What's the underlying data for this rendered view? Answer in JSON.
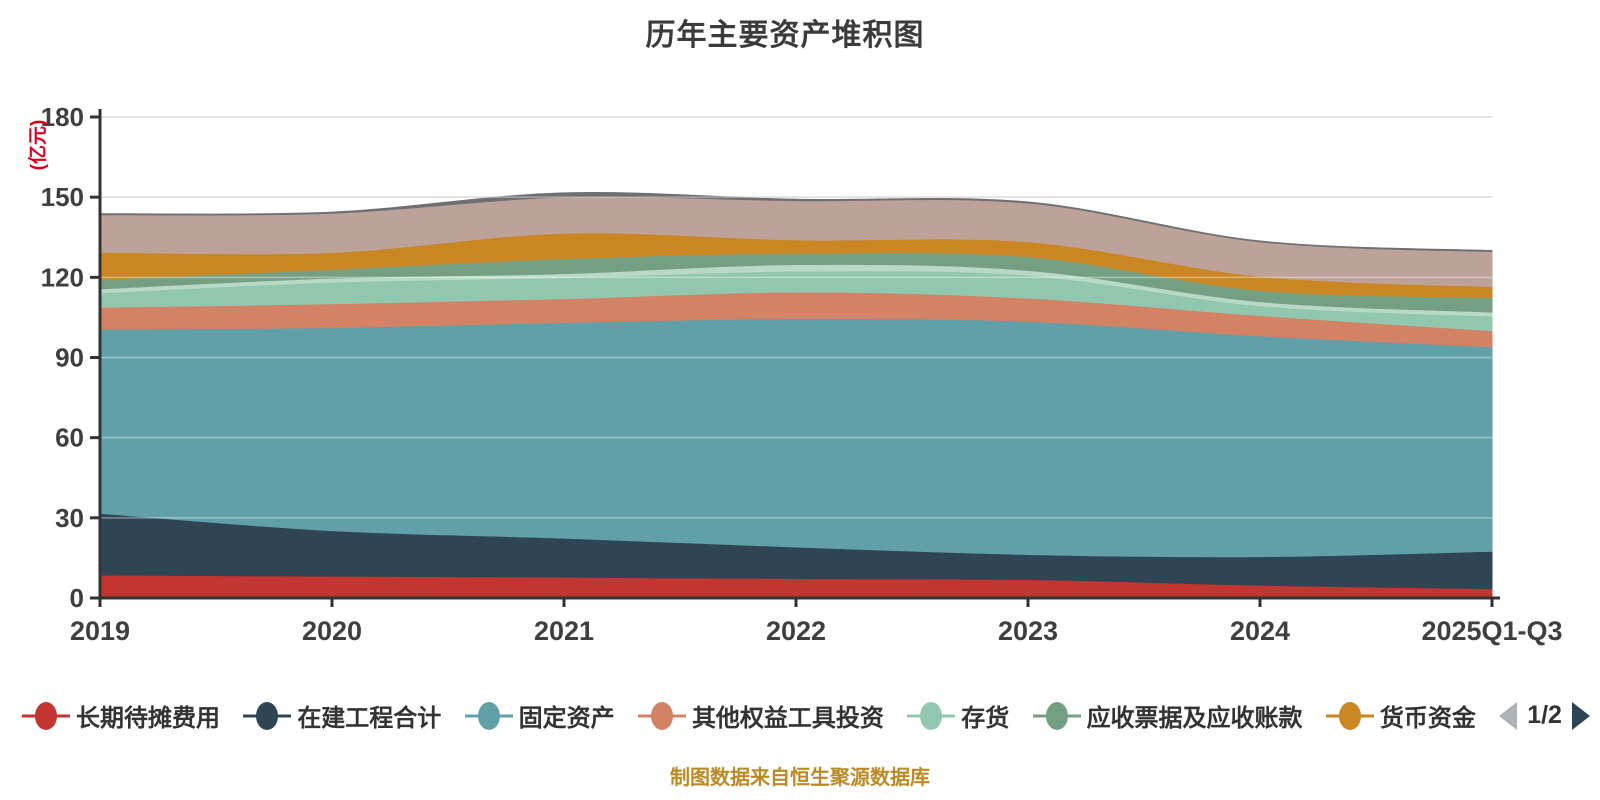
{
  "title": "历年主要资产堆积图",
  "y_axis": {
    "unit_label": "(亿元)",
    "unit_label_color": "#d9001b",
    "ticks": [
      0,
      30,
      60,
      90,
      120,
      150,
      180
    ]
  },
  "colors": {
    "axis_line": "#333333",
    "grid_line": "#cccccc",
    "grid_line_over_area": "rgba(255,255,255,0.38)",
    "tick_label": "#3f3f3f",
    "background": "#ffffff"
  },
  "legend": {
    "page_indicator": "1/2",
    "prev_arrow_color": "#aab4ba",
    "next_arrow_color": "#2f4554",
    "items": [
      {
        "label": "长期待摊费用",
        "color": "#c23531"
      },
      {
        "label": "在建工程合计",
        "color": "#2f4554"
      },
      {
        "label": "固定资产",
        "color": "#61a0a8"
      },
      {
        "label": "其他权益工具投资",
        "color": "#d48265"
      },
      {
        "label": "存货",
        "color": "#91c7ae"
      },
      {
        "label": "应收票据及应收账款",
        "color": "#749f83"
      },
      {
        "label": "货币资金",
        "color": "#ca8622"
      }
    ]
  },
  "footer": {
    "source_text": "制图数据来自恒生聚源数据库"
  },
  "chart_data": {
    "type": "area",
    "stacked": true,
    "smooth": true,
    "title": "历年主要资产堆积图",
    "ylabel": "(亿元)",
    "ylim": [
      0,
      180
    ],
    "grid": true,
    "legend_position": "bottom",
    "categories": [
      "2019",
      "2020",
      "2021",
      "2022",
      "2023",
      "2024",
      "2025Q1-Q3"
    ],
    "series": [
      {
        "name": "长期待摊费用",
        "color": "#c23531",
        "in_visible_legend": true,
        "values": [
          8.6,
          8.2,
          7.8,
          7.3,
          6.9,
          4.8,
          3.5
        ]
      },
      {
        "name": "在建工程合计",
        "color": "#2f4554",
        "in_visible_legend": true,
        "values": [
          23.1,
          17.0,
          14.6,
          11.8,
          9.4,
          10.7,
          14.0
        ]
      },
      {
        "name": "固定资产",
        "color": "#61a0a8",
        "in_visible_legend": true,
        "values": [
          68.9,
          76.0,
          80.7,
          85.5,
          87.2,
          82.6,
          76.5
        ]
      },
      {
        "name": "其他权益工具投资",
        "color": "#d48265",
        "in_visible_legend": true,
        "values": [
          8.2,
          8.9,
          8.9,
          9.9,
          8.7,
          7.6,
          6.0
        ]
      },
      {
        "name": "存货",
        "color": "#91c7ae",
        "in_visible_legend": true,
        "values": [
          5.4,
          8.1,
          7.9,
          7.8,
          8.6,
          3.7,
          5.5
        ]
      },
      {
        "name": "",
        "color": "#b9d8c7",
        "in_visible_legend": false,
        "values": [
          1.5,
          1.5,
          1.5,
          2.5,
          1.8,
          1.5,
          1.5
        ]
      },
      {
        "name": "应收票据及应收账款",
        "color": "#749f83",
        "in_visible_legend": true,
        "values": [
          3.5,
          3.3,
          5.6,
          4.2,
          5.1,
          4.2,
          5.5
        ]
      },
      {
        "name": "货币资金",
        "color": "#ca8622",
        "in_visible_legend": true,
        "values": [
          10.2,
          6.3,
          9.5,
          5.0,
          5.6,
          5.3,
          4.0
        ]
      },
      {
        "name": "",
        "color": "#bda29a",
        "in_visible_legend": false,
        "values": [
          14.0,
          14.7,
          13.5,
          14.7,
          14.5,
          12.9,
          13.1
        ]
      },
      {
        "name": "",
        "color": "#6e7074",
        "in_visible_legend": false,
        "values": [
          0.4,
          0.4,
          1.6,
          0.5,
          0.4,
          0.3,
          0.4
        ]
      }
    ]
  }
}
